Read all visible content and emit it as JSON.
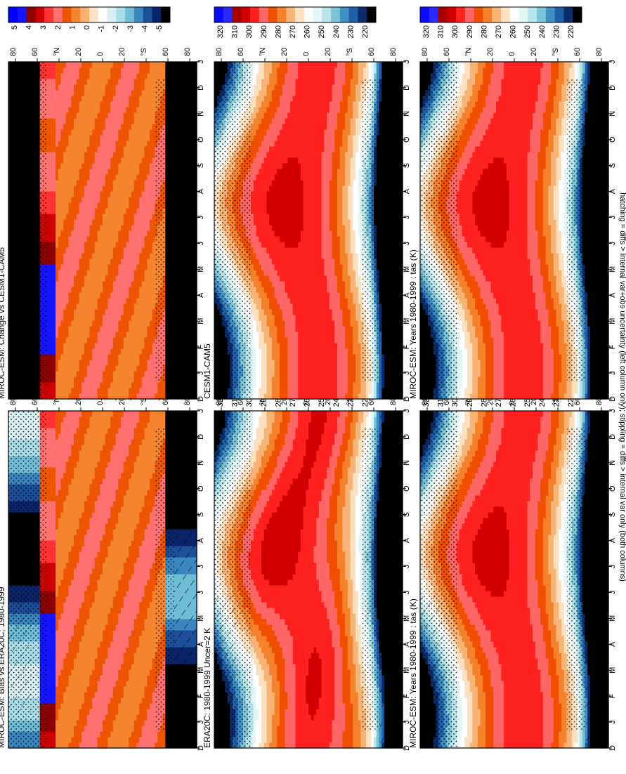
{
  "figure_note": "hatching = diffs > internal var+obs uncertainty (left column only); stippling = diffs > internal var only (both columns)",
  "palettes": {
    "absolute": [
      "#0a0aff",
      "#2a2aff",
      "#a80000",
      "#d10000",
      "#ff2020",
      "#ff6666",
      "#f04f00",
      "#f4822c",
      "#f8b377",
      "#fde0c0",
      "#ffffff",
      "#e3f6f6",
      "#b7e4ea",
      "#7cc3d6",
      "#3f8fc4",
      "#1f5fa8",
      "#0b2c6b",
      "#000000"
    ],
    "difference": [
      "#0000ff",
      "#1515ff",
      "#8b0000",
      "#cc0000",
      "#ff3333",
      "#ff7070",
      "#ee5500",
      "#f48430",
      "#f8b070",
      "#fde2c8",
      "#ffffff",
      "#d8f0f4",
      "#a8dce6",
      "#6fbcd6",
      "#3a86c0",
      "#1b4f9a",
      "#0a246a",
      "#000000"
    ]
  },
  "chart_data": [
    {
      "type": "heatmap",
      "panel": "top-left",
      "variable": "tas",
      "units": "K",
      "title": "MIROC-ESM: Years 1980-1999 : tas (K)",
      "x": [
        "D",
        "J",
        "F",
        "M",
        "A",
        "M",
        "J",
        "J",
        "A",
        "S",
        "O",
        "N",
        "D",
        "J"
      ],
      "y": [
        "80",
        "60",
        "°N",
        "20",
        "0",
        "20",
        "°S",
        "60",
        "80"
      ],
      "colorbar": [
        "320",
        "310",
        "300",
        "290",
        "280",
        "270",
        "260",
        "250",
        "240",
        "230",
        "220"
      ],
      "hatching": true,
      "stippling": true
    },
    {
      "type": "heatmap",
      "panel": "top-right",
      "variable": "tas",
      "units": "K",
      "title": "MIROC-ESM: Years 1980-1999 : tas (K)",
      "x": [
        "D",
        "J",
        "F",
        "M",
        "A",
        "M",
        "J",
        "J",
        "A",
        "S",
        "O",
        "N",
        "D",
        "J"
      ],
      "y": [
        "80",
        "60",
        "°N",
        "20",
        "0",
        "20",
        "°S",
        "60",
        "80"
      ],
      "colorbar": [
        "320",
        "310",
        "300",
        "290",
        "280",
        "270",
        "260",
        "250",
        "240",
        "230",
        "220"
      ],
      "hatching": false,
      "stippling": true
    },
    {
      "type": "heatmap",
      "panel": "middle-left",
      "variable": "tas",
      "units": "K",
      "title": "ERA20C: 1980-1999 Uncer=2 K",
      "x": [
        "D",
        "J",
        "F",
        "M",
        "A",
        "M",
        "J",
        "J",
        "A",
        "S",
        "O",
        "N",
        "D",
        "J"
      ],
      "y": [
        "80",
        "60",
        "°N",
        "20",
        "0",
        "20",
        "°S",
        "60",
        "80"
      ],
      "colorbar": [
        "320",
        "310",
        "300",
        "290",
        "280",
        "270",
        "260",
        "250",
        "240",
        "230",
        "220"
      ],
      "hatching": true,
      "stippling": true
    },
    {
      "type": "heatmap",
      "panel": "middle-right",
      "variable": "tas",
      "units": "K",
      "title": "CESM1-CAM5",
      "x": [
        "D",
        "J",
        "F",
        "M",
        "A",
        "M",
        "J",
        "J",
        "A",
        "S",
        "O",
        "N",
        "D",
        "J"
      ],
      "y": [
        "80",
        "60",
        "°N",
        "20",
        "0",
        "20",
        "°S",
        "60",
        "80"
      ],
      "colorbar": [
        "320",
        "310",
        "300",
        "290",
        "280",
        "270",
        "260",
        "250",
        "240",
        "230",
        "220"
      ],
      "hatching": false,
      "stippling": true
    },
    {
      "type": "heatmap",
      "panel": "bottom-left",
      "variable": "tas difference",
      "units": "K",
      "title": "MIROC-ESM: Bias vs ERA20C; 1980-1999",
      "x": [
        "D",
        "J",
        "F",
        "M",
        "A",
        "M",
        "J",
        "J",
        "A",
        "S",
        "O",
        "N",
        "D",
        "J"
      ],
      "y": [
        "80",
        "60",
        "°N",
        "20",
        "0",
        "20",
        "°S",
        "60",
        "80"
      ],
      "colorbar": [
        "5",
        "4",
        "3",
        "2",
        "1",
        "0",
        "-1",
        "-2",
        "-3",
        "-4",
        "-5"
      ],
      "hatching": true,
      "stippling": true
    },
    {
      "type": "heatmap",
      "panel": "bottom-right",
      "variable": "tas difference",
      "units": "K",
      "title": "MIROC-ESM: Change vs CESM1-CAM5",
      "x": [
        "D",
        "J",
        "F",
        "M",
        "A",
        "M",
        "J",
        "J",
        "A",
        "S",
        "O",
        "N",
        "D",
        "J"
      ],
      "y": [
        "80",
        "60",
        "°N",
        "20",
        "0",
        "20",
        "°S",
        "60",
        "80"
      ],
      "colorbar": [
        "5",
        "4",
        "3",
        "2",
        "1",
        "0",
        "-1",
        "-2",
        "-3",
        "-4",
        "-5"
      ],
      "hatching": false,
      "stippling": true
    }
  ]
}
